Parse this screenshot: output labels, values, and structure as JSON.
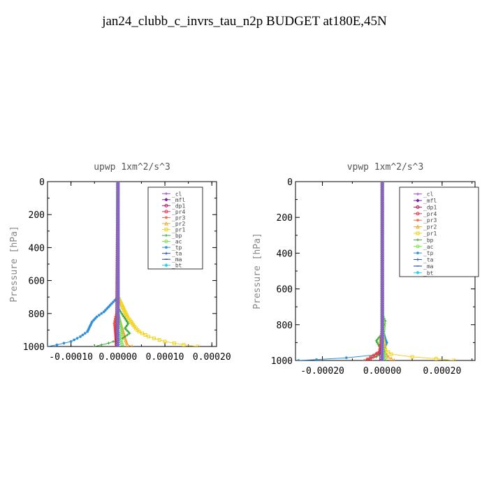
{
  "page_title": "jan24_clubb_c_invrs_tau_n2p  BUDGET at180E,45N",
  "legend_items": [
    "_cl",
    "_mfl",
    "_dp1",
    "_pr4",
    "_pr3",
    "_pr2",
    "_pr1",
    "_bp",
    "_ac",
    "_tp",
    "_ta",
    "_ma",
    "_bt"
  ],
  "series_colors": {
    "_cl": "#9a4fd1",
    "_mfl": "#7a1f9e",
    "_dp1": "#c2185b",
    "_pr4": "#e0304e",
    "_pr3": "#f26a4f",
    "_pr2": "#f0a830",
    "_pr1": "#f2d21a",
    "_bp": "#3aa832",
    "_ac": "#7ee04a",
    "_tp": "#2f8fd6",
    "_ta": "#1e4fd8",
    "_ma": "#1f3a8a",
    "_bt": "#22d3ee"
  },
  "chart_data": [
    {
      "type": "line",
      "title": "upwp   1xm^2/s^3",
      "ylabel": "Pressure [hPa]",
      "xlim": [
        -0.00015,
        0.00021
      ],
      "ylim": [
        1000,
        0
      ],
      "x_ticks": [
        -0.0001,
        0.0,
        0.0001,
        0.0002
      ],
      "x_tick_labels": [
        "-0.00010",
        "0.00000",
        "0.00010",
        "0.00020"
      ],
      "y_ticks": [
        0,
        200,
        400,
        600,
        800,
        1000
      ],
      "y_tick_labels": [
        "0",
        "200",
        "400",
        "600",
        "800",
        "1000"
      ],
      "legend_position": "top-right",
      "series": [
        {
          "key": "_tp",
          "pressure": [
            0,
            700,
            730,
            760,
            790,
            820,
            850,
            880,
            910,
            940,
            970,
            990,
            1000
          ],
          "values": [
            0,
            0,
            -1e-05,
            -2e-05,
            -3e-05,
            -4.5e-05,
            -5.5e-05,
            -6e-05,
            -6.5e-05,
            -8e-05,
            -0.0001,
            -0.00013,
            -0.00015
          ]
        },
        {
          "key": "_pr1",
          "pressure": [
            0,
            700,
            730,
            760,
            790,
            820,
            850,
            880,
            910,
            940,
            970,
            990,
            1000
          ],
          "values": [
            0,
            0,
            5e-06,
            1e-05,
            1.5e-05,
            2e-05,
            2.8e-05,
            3.5e-05,
            4.5e-05,
            6.5e-05,
            0.0001,
            0.00014,
            0.00017
          ]
        },
        {
          "key": "_pr2",
          "pressure": [
            0,
            800,
            850,
            900,
            950,
            990,
            1000
          ],
          "values": [
            0,
            0,
            5e-06,
            1e-05,
            1.5e-05,
            2e-05,
            3e-05
          ]
        },
        {
          "key": "_bp",
          "pressure": [
            0,
            760,
            800,
            830,
            860,
            890,
            920,
            950,
            980,
            1000
          ],
          "values": [
            0,
            0,
            8e-06,
            1.5e-05,
            2.2e-05,
            1.5e-05,
            2.5e-05,
            1e-05,
            -2e-05,
            -5e-05
          ]
        },
        {
          "key": "_ac",
          "pressure": [
            0,
            800,
            850,
            900,
            950,
            1000
          ],
          "values": [
            0,
            0,
            4e-06,
            8e-06,
            5e-06,
            1e-05
          ]
        },
        {
          "key": "_pr3",
          "pressure": [
            0,
            780,
            820,
            860,
            900,
            940,
            980,
            1000
          ],
          "values": [
            0,
            0,
            -5e-06,
            -8e-06,
            -6e-06,
            -4e-06,
            -3e-06,
            -4e-06
          ]
        },
        {
          "key": "_pr4",
          "pressure": [
            0,
            800,
            850,
            900,
            950,
            1000
          ],
          "values": [
            0,
            -2e-06,
            -4e-06,
            -5e-06,
            -4e-06,
            -3e-06
          ]
        },
        {
          "key": "_dp1",
          "pressure": [
            0,
            850,
            950,
            1000
          ],
          "values": [
            0,
            0,
            -2e-06,
            -3e-06
          ]
        },
        {
          "key": "_ta",
          "pressure": [
            0,
            900,
            1000
          ],
          "values": [
            0,
            0,
            2e-06
          ]
        },
        {
          "key": "_ma",
          "pressure": [
            0,
            1000
          ],
          "values": [
            0,
            0
          ]
        },
        {
          "key": "_mfl",
          "pressure": [
            0,
            1000
          ],
          "values": [
            0,
            0
          ]
        },
        {
          "key": "_bt",
          "pressure": [
            0,
            1000
          ],
          "values": [
            0,
            0
          ]
        },
        {
          "key": "_cl",
          "pressure": [
            0,
            1000
          ],
          "values": [
            0,
            0
          ]
        }
      ]
    },
    {
      "type": "line",
      "title": "vpwp   1xm^2/s^3",
      "ylabel": "Pressure [hPa]",
      "xlim": [
        -0.00029,
        0.00031
      ],
      "ylim": [
        1000,
        0
      ],
      "x_ticks": [
        -0.0002,
        0.0,
        0.0002
      ],
      "x_tick_labels": [
        "-0.00020",
        "0.00000",
        "0.00020"
      ],
      "y_ticks": [
        0,
        200,
        400,
        600,
        800,
        1000
      ],
      "y_tick_labels": [
        "0",
        "200",
        "400",
        "600",
        "800",
        "1000"
      ],
      "legend_position": "top-right",
      "series": [
        {
          "key": "_tp",
          "pressure": [
            0,
            800,
            850,
            880,
            900,
            920,
            950,
            970,
            985,
            995,
            1000
          ],
          "values": [
            0,
            0,
            5e-06,
            1e-05,
            1.5e-05,
            1e-05,
            5e-06,
            -3e-05,
            -0.00012,
            -0.00022,
            -0.00028
          ]
        },
        {
          "key": "_pr1",
          "pressure": [
            0,
            850,
            900,
            940,
            965,
            980,
            990,
            1000
          ],
          "values": [
            0,
            0,
            5e-06,
            1e-05,
            3e-05,
            0.0001,
            0.00018,
            0.00024
          ]
        },
        {
          "key": "_pr2",
          "pressure": [
            0,
            900,
            950,
            980,
            1000
          ],
          "values": [
            0,
            0,
            5e-06,
            2e-05,
            4e-05
          ]
        },
        {
          "key": "_bp",
          "pressure": [
            0,
            740,
            780,
            820,
            860,
            890,
            920,
            950,
            980,
            1000
          ],
          "values": [
            0,
            0,
            1e-05,
            5e-06,
            -5e-06,
            -2e-05,
            -1e-05,
            5e-06,
            -2e-05,
            -6e-05
          ]
        },
        {
          "key": "_ac",
          "pressure": [
            0,
            750,
            800,
            850,
            900,
            950,
            1000
          ],
          "values": [
            0,
            0,
            6e-06,
            4e-06,
            -8e-06,
            6e-06,
            1e-05
          ]
        },
        {
          "key": "_pr3",
          "pressure": [
            0,
            800,
            850,
            900,
            950,
            980,
            1000
          ],
          "values": [
            0,
            0,
            -3e-06,
            -5e-06,
            -1e-05,
            -4e-05,
            -6e-05
          ]
        },
        {
          "key": "_pr4",
          "pressure": [
            0,
            850,
            900,
            950,
            980,
            1000
          ],
          "values": [
            0,
            0,
            -3e-06,
            -8e-06,
            -3e-05,
            -5e-05
          ]
        },
        {
          "key": "_dp1",
          "pressure": [
            0,
            900,
            1000
          ],
          "values": [
            0,
            0,
            -5e-06
          ]
        },
        {
          "key": "_ta",
          "pressure": [
            0,
            900,
            1000
          ],
          "values": [
            0,
            0,
            3e-06
          ]
        },
        {
          "key": "_ma",
          "pressure": [
            0,
            1000
          ],
          "values": [
            0,
            0
          ]
        },
        {
          "key": "_mfl",
          "pressure": [
            0,
            1000
          ],
          "values": [
            0,
            0
          ]
        },
        {
          "key": "_bt",
          "pressure": [
            0,
            1000
          ],
          "values": [
            0,
            0
          ]
        },
        {
          "key": "_cl",
          "pressure": [
            0,
            1000
          ],
          "values": [
            0,
            0
          ]
        }
      ]
    }
  ]
}
